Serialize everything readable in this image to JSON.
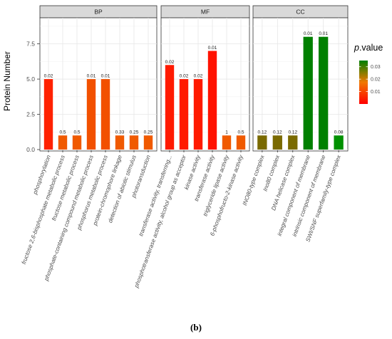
{
  "caption": "(b)",
  "chart_data": {
    "type": "bar",
    "ylabel": "Protein Number",
    "xlabel": "",
    "ylim": [
      0,
      9.4
    ],
    "yticks": [
      0.0,
      2.5,
      5.0,
      7.5
    ],
    "ytick_labels": [
      "0.0",
      "2.5",
      "5.0",
      "7.5"
    ],
    "grid": true,
    "legend": {
      "title_italic": "p",
      "title_rest": ".value",
      "placement": "right",
      "ticks": [
        "0.03",
        "0.02",
        "0.01"
      ],
      "tick_values": [
        0.03,
        0.02,
        0.01
      ],
      "range": [
        0.0,
        0.035
      ],
      "color_low": "#ff0000",
      "color_mid": "#f07800",
      "color_high": "#008000"
    },
    "facets": [
      {
        "name": "BP",
        "categories": [
          "phosphorylation",
          "fructose 2,6-bisphosphate metabolic process",
          "fructose metabolic process",
          "phosphate-containing compound metabolic process",
          "phosphorus metabolic process",
          "protein-chromophore linkage",
          "detection of abiotic stimulus",
          "photoransduction"
        ],
        "values": [
          5,
          1,
          1,
          5,
          5,
          1,
          1,
          1
        ],
        "labels": [
          "0.02",
          "0.5",
          "0.5",
          "0.01",
          "0.01",
          "0.33",
          "0.25",
          "0.25"
        ],
        "colors": [
          "#ff2200",
          "#f05a00",
          "#f05a00",
          "#f25000",
          "#f25000",
          "#f05a00",
          "#f05a00",
          "#f05a00"
        ]
      },
      {
        "name": "MF",
        "categories": [
          "transferase activity, transferring...",
          "phosphotransferase activity, alcohol group as acceptor",
          "kinase activity",
          "transferase activity",
          "triglyceride lipase activity",
          "6-phosphofructo-2-kinase activity"
        ],
        "values": [
          6,
          5,
          5,
          7,
          1,
          1
        ],
        "labels": [
          "0.02",
          "0.02",
          "0.02",
          "0.01",
          "1",
          "0.5"
        ],
        "colors": [
          "#ff1a00",
          "#ff1a00",
          "#ff1a00",
          "#ff1200",
          "#f05a00",
          "#f05a00"
        ]
      },
      {
        "name": "CC",
        "categories": [
          "INO80-type complex",
          "Ino80 complex",
          "DNA helicase complex",
          "integral component of membrane",
          "intrinsic component of membrane",
          "SWI/SNF superfamily-type complex"
        ],
        "values": [
          1,
          1,
          1,
          8,
          8,
          1
        ],
        "labels": [
          "0.12",
          "0.12",
          "0.12",
          "0.01",
          "0.01",
          "0.08"
        ],
        "colors": [
          "#7a6a00",
          "#7a6a00",
          "#7a6a00",
          "#008000",
          "#008000",
          "#009000"
        ]
      }
    ]
  }
}
